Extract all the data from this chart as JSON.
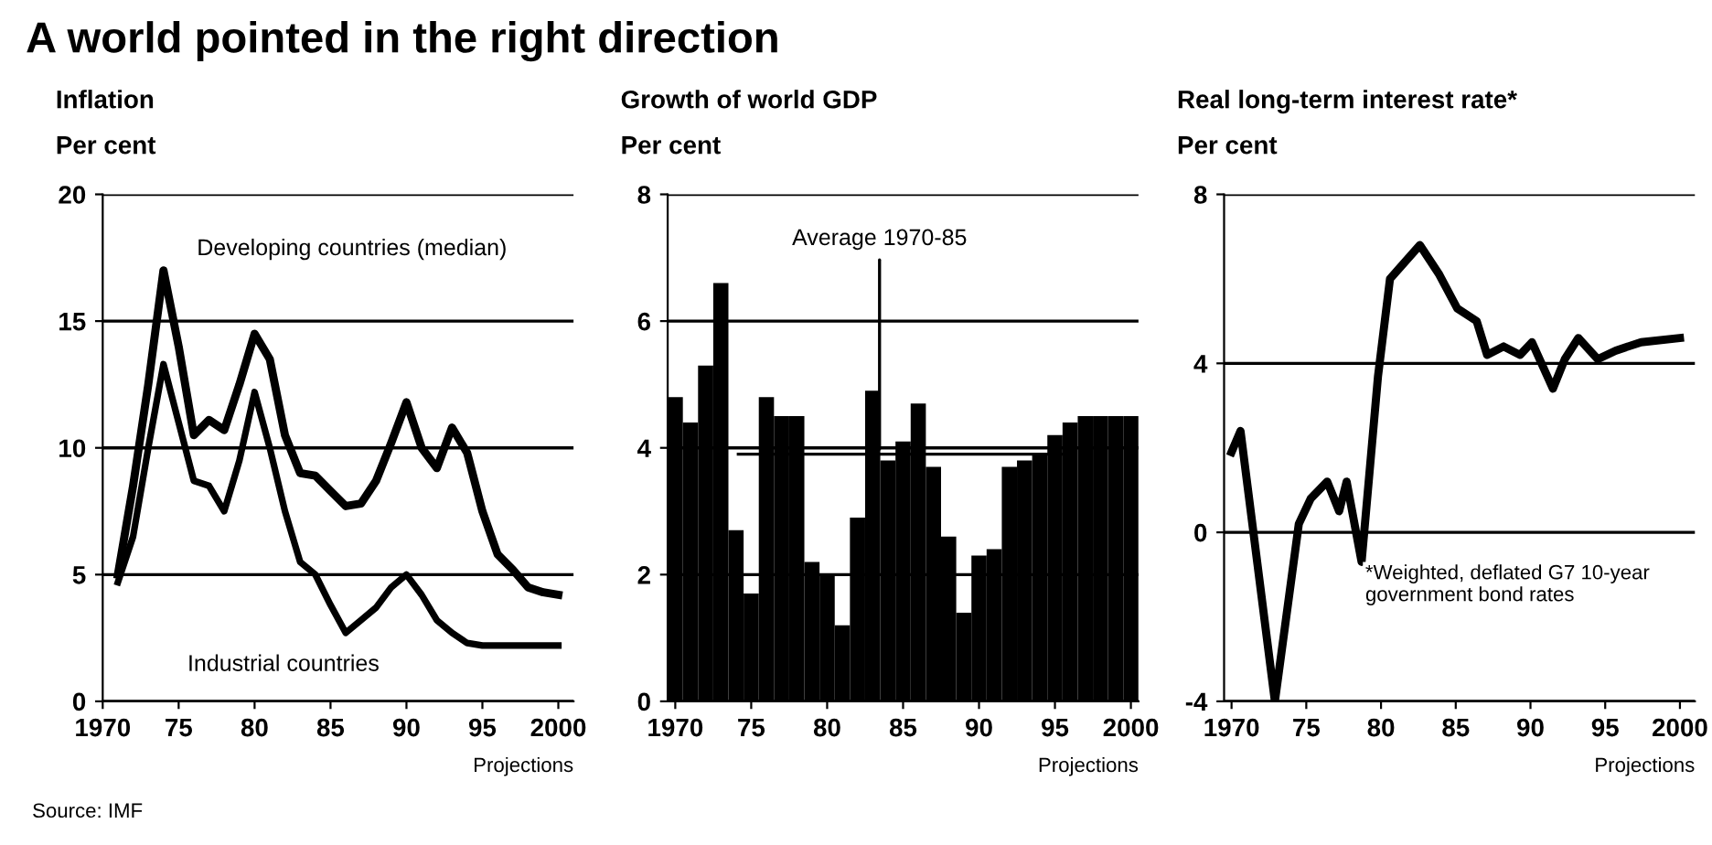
{
  "chart_data": [
    {
      "type": "line",
      "title": "A world pointed in the right direction",
      "subtitle": "Inflation",
      "ylabel": "Per cent",
      "x": [
        1971,
        1972,
        1973,
        1974,
        1975,
        1976,
        1977,
        1978,
        1979,
        1980,
        1981,
        1982,
        1983,
        1984,
        1985,
        1986,
        1987,
        1988,
        1989,
        1990,
        1991,
        1992,
        1993,
        1994,
        1995,
        1996,
        1997,
        1998,
        1999,
        2000
      ],
      "series": [
        {
          "name": "Developing countries (median)",
          "color": "#000000",
          "values": [
            5.0,
            8.5,
            12.5,
            17.0,
            14.0,
            10.5,
            11.1,
            10.7,
            12.5,
            14.5,
            13.5,
            10.5,
            9.0,
            8.9,
            8.3,
            7.7,
            7.8,
            8.7,
            10.2,
            11.8,
            10.0,
            9.2,
            10.8,
            9.8,
            7.5,
            5.8,
            5.2,
            4.5,
            4.3,
            4.2
          ]
        },
        {
          "name": "Industrial countries",
          "color": "#000000",
          "values": [
            4.7,
            6.5,
            10.0,
            13.3,
            11.0,
            8.7,
            8.5,
            7.5,
            9.5,
            12.2,
            10.0,
            7.5,
            5.5,
            5.0,
            3.8,
            2.7,
            3.2,
            3.7,
            4.5,
            5.0,
            4.2,
            3.2,
            2.7,
            2.3,
            2.2,
            2.2,
            2.2,
            2.2,
            2.2,
            2.2
          ]
        }
      ],
      "xlim": [
        1970,
        2001
      ],
      "xticks": [
        1970,
        {
          "value": 1975,
          "label": "75"
        },
        {
          "value": 1980,
          "label": "80"
        },
        {
          "value": 1985,
          "label": "85"
        },
        {
          "value": 1990,
          "label": "90"
        },
        {
          "value": 1995,
          "label": "95"
        },
        2000
      ],
      "ylim": [
        0,
        20
      ],
      "yticks": [
        0,
        5,
        10,
        15,
        20
      ],
      "grid": "y",
      "annotations": [
        "Projections",
        "Source: IMF"
      ]
    },
    {
      "type": "bar",
      "subtitle": "Growth of world GDP",
      "ylabel": "Per cent",
      "x": [
        1970,
        1971,
        1972,
        1973,
        1974,
        1975,
        1976,
        1977,
        1978,
        1979,
        1980,
        1981,
        1982,
        1983,
        1984,
        1985,
        1986,
        1987,
        1988,
        1989,
        1990,
        1991,
        1992,
        1993,
        1994,
        1995,
        1996,
        1997,
        1998,
        1999,
        2000
      ],
      "values": [
        4.8,
        4.4,
        5.3,
        6.6,
        2.7,
        1.7,
        4.8,
        4.5,
        4.5,
        2.2,
        2.0,
        1.2,
        2.9,
        4.9,
        3.8,
        4.1,
        4.7,
        3.7,
        2.6,
        1.4,
        2.3,
        2.4,
        3.7,
        3.8,
        3.9,
        4.2,
        4.4,
        4.5,
        4.5,
        4.5,
        4.5
      ],
      "color": "#000000",
      "xlim": [
        1969.5,
        2000.5
      ],
      "xticks": [
        1970,
        {
          "value": 1975,
          "label": "75"
        },
        {
          "value": 1980,
          "label": "80"
        },
        {
          "value": 1985,
          "label": "85"
        },
        {
          "value": 1990,
          "label": "90"
        },
        {
          "value": 1995,
          "label": "95"
        },
        2000
      ],
      "ylim": [
        0,
        8
      ],
      "yticks": [
        0,
        2,
        4,
        6,
        8
      ],
      "grid": "y",
      "ref_lines": [
        {
          "axis": "y",
          "value": 3.9,
          "label": "Average 1970-85",
          "color": "#000000"
        }
      ],
      "annotations": [
        "Projections"
      ]
    },
    {
      "type": "line",
      "subtitle": "Real long-term interest rate*",
      "ylabel": "Per cent",
      "x": [
        1970,
        1970.6,
        1972.9,
        1974.5,
        1975.3,
        1976.4,
        1977.2,
        1977.7,
        1978.7,
        1979.8,
        1980.6,
        1982.6,
        1983.9,
        1985.1,
        1986.4,
        1987.1,
        1988.2,
        1989.3,
        1990.1,
        1991.5,
        1992.3,
        1993.2,
        1994.5,
        1995.7,
        1997.4,
        2000
      ],
      "series": [
        {
          "color": "#000000",
          "values": [
            1.9,
            2.4,
            -4.0,
            0.2,
            0.8,
            1.2,
            0.5,
            1.2,
            -0.7,
            3.7,
            6.0,
            6.8,
            6.1,
            5.3,
            5.0,
            4.2,
            4.4,
            4.2,
            4.5,
            3.4,
            4.1,
            4.6,
            4.1,
            4.3,
            4.5,
            4.6
          ]
        }
      ],
      "xlim": [
        1969.5,
        2001
      ],
      "xticks": [
        1970,
        {
          "value": 1975,
          "label": "75"
        },
        {
          "value": 1980,
          "label": "80"
        },
        {
          "value": 1985,
          "label": "85"
        },
        {
          "value": 1990,
          "label": "90"
        },
        {
          "value": 1995,
          "label": "95"
        },
        2000
      ],
      "ylim": [
        -4,
        8
      ],
      "yticks": [
        -4,
        0,
        4,
        8
      ],
      "grid": "y",
      "annotations": [
        "Projections",
        "*Weighted, deflated G7 10-year government bond rates"
      ]
    }
  ]
}
